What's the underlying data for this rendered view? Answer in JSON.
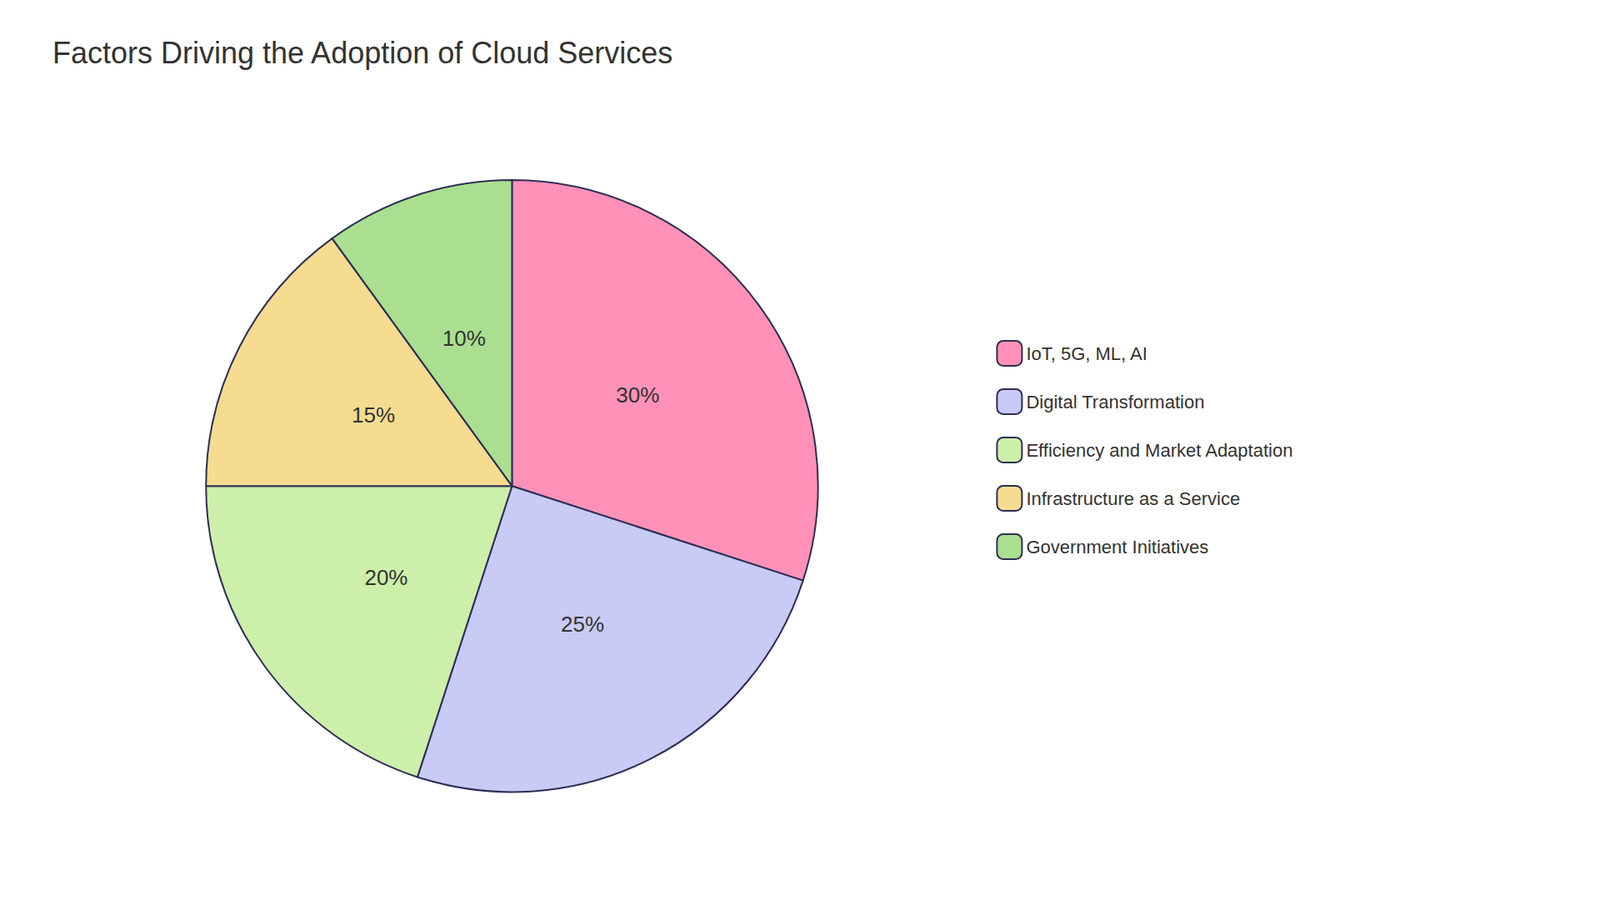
{
  "chart_data": {
    "type": "pie",
    "title": "Factors Driving the Adoption of Cloud Services",
    "categories": [
      "IoT, 5G, ML, AI",
      "Digital Transformation",
      "Efficiency and Market Adaptation",
      "Infrastructure as a Service",
      "Government Initiatives"
    ],
    "values": [
      30,
      25,
      20,
      15,
      10
    ],
    "value_labels": [
      "30%",
      "25%",
      "20%",
      "15%",
      "10%"
    ],
    "colors": [
      "#FF91B8",
      "#C8CBF5",
      "#CCEFAA",
      "#F5DC90",
      "#AADF90"
    ],
    "data_labels": true,
    "legend": "right"
  }
}
